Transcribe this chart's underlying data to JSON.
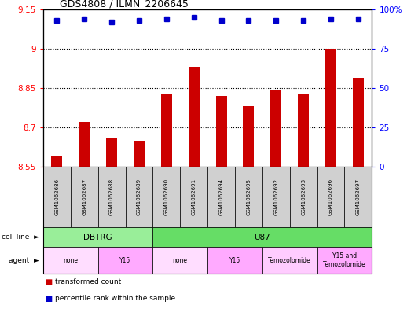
{
  "title": "GDS4808 / ILMN_2206645",
  "samples": [
    "GSM1062686",
    "GSM1062687",
    "GSM1062688",
    "GSM1062689",
    "GSM1062690",
    "GSM1062691",
    "GSM1062694",
    "GSM1062695",
    "GSM1062692",
    "GSM1062693",
    "GSM1062696",
    "GSM1062697"
  ],
  "bar_values": [
    8.59,
    8.72,
    8.66,
    8.65,
    8.83,
    8.93,
    8.82,
    8.78,
    8.84,
    8.83,
    9.0,
    8.89
  ],
  "percentile_values": [
    93,
    94,
    92,
    93,
    94,
    95,
    93,
    93,
    93,
    93,
    94,
    94
  ],
  "bar_color": "#cc0000",
  "dot_color": "#0000cc",
  "ylim_left": [
    8.55,
    9.15
  ],
  "ylim_right": [
    0,
    100
  ],
  "yticks_left": [
    8.55,
    8.7,
    8.85,
    9.0,
    9.15
  ],
  "ytick_labels_left": [
    "8.55",
    "8.7",
    "8.85",
    "9",
    "9.15"
  ],
  "yticks_right": [
    0,
    25,
    50,
    75,
    100
  ],
  "ytick_labels_right": [
    "0",
    "25",
    "50",
    "75",
    "100%"
  ],
  "hlines": [
    9.0,
    8.85,
    8.7
  ],
  "cell_line_groups": [
    {
      "label": "DBTRG",
      "start": 0,
      "end": 4,
      "color": "#99ee99"
    },
    {
      "label": "U87",
      "start": 4,
      "end": 12,
      "color": "#66dd66"
    }
  ],
  "agent_groups": [
    {
      "label": "none",
      "start": 0,
      "end": 2,
      "color": "#ffddff"
    },
    {
      "label": "Y15",
      "start": 2,
      "end": 4,
      "color": "#ffaaff"
    },
    {
      "label": "none",
      "start": 4,
      "end": 6,
      "color": "#ffddff"
    },
    {
      "label": "Y15",
      "start": 6,
      "end": 8,
      "color": "#ffaaff"
    },
    {
      "label": "Temozolomide",
      "start": 8,
      "end": 10,
      "color": "#ffccff"
    },
    {
      "label": "Y15 and\nTemozolomide",
      "start": 10,
      "end": 12,
      "color": "#ffaaff"
    }
  ],
  "legend_items": [
    {
      "label": "transformed count",
      "color": "#cc0000"
    },
    {
      "label": "percentile rank within the sample",
      "color": "#0000cc"
    }
  ],
  "bar_width": 0.4
}
